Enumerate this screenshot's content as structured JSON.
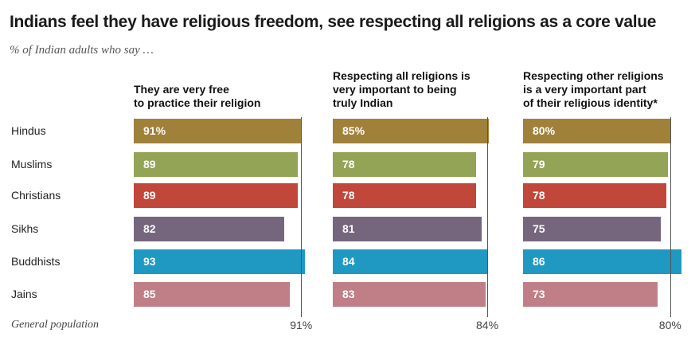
{
  "chart_data": {
    "type": "bar",
    "orientation": "horizontal",
    "title": "Indians feel they have religious freedom, see respecting all religions as a core value",
    "subtitle": "% of Indian adults who say …",
    "categories": [
      "Hindus",
      "Muslims",
      "Christians",
      "Sikhs",
      "Buddhists",
      "Jains"
    ],
    "colors": [
      "#a0813a",
      "#93a457",
      "#c1473b",
      "#76667d",
      "#1f99c2",
      "#c07f87"
    ],
    "reference_label": "General population",
    "panels": [
      {
        "header": [
          "They are very free",
          "to practice their religion"
        ],
        "values": [
          91,
          89,
          89,
          82,
          93,
          85
        ],
        "labels": [
          "91%",
          "89",
          "89",
          "82",
          "93",
          "85"
        ],
        "reference_value": 91,
        "reference_text": "91%"
      },
      {
        "header": [
          "Respecting all religions is",
          "very important to being",
          "truly Indian"
        ],
        "values": [
          85,
          78,
          78,
          81,
          84,
          83
        ],
        "labels": [
          "85%",
          "78",
          "78",
          "81",
          "84",
          "83"
        ],
        "reference_value": 84,
        "reference_text": "84%"
      },
      {
        "header": [
          "Respecting other religions",
          "is a very important part",
          "of their religious identity*"
        ],
        "values": [
          80,
          79,
          78,
          75,
          86,
          73
        ],
        "labels": [
          "80%",
          "79",
          "78",
          "75",
          "86",
          "73"
        ],
        "reference_value": 80,
        "reference_text": "80%"
      }
    ]
  }
}
